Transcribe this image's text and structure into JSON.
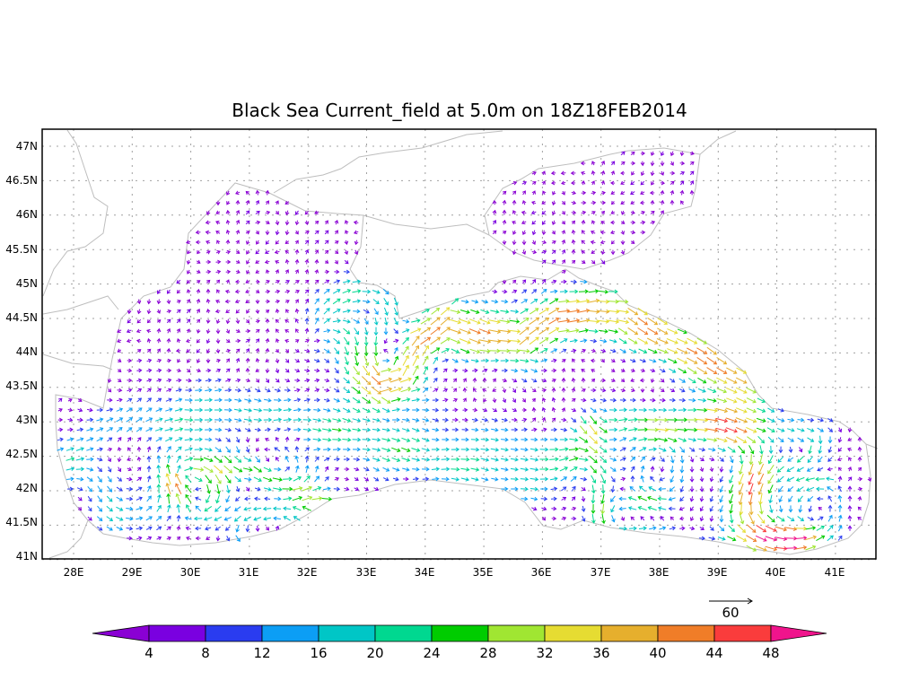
{
  "title": "Black Sea Current_field at 5.0m on 18Z18FEB2014",
  "axes": {
    "lon_labels": [
      "28E",
      "29E",
      "30E",
      "31E",
      "32E",
      "33E",
      "34E",
      "35E",
      "36E",
      "37E",
      "38E",
      "39E",
      "40E",
      "41E"
    ],
    "lat_labels": [
      "47N",
      "46.5N",
      "46N",
      "45.5N",
      "45N",
      "44.5N",
      "44N",
      "43.5N",
      "43N",
      "42.5N",
      "42N",
      "41.5N",
      "41N"
    ]
  },
  "reference_vector": {
    "label": "60"
  },
  "colorbar": {
    "colors": [
      "#8a00d4",
      "#7a00e0",
      "#2a3cf0",
      "#0c9ef5",
      "#00c6c6",
      "#00d890",
      "#00cc00",
      "#a0e632",
      "#e6dc32",
      "#e6af2d",
      "#f07d28",
      "#fa3c3c",
      "#f0148c"
    ],
    "labels": [
      "4",
      "8",
      "12",
      "16",
      "20",
      "24",
      "28",
      "32",
      "36",
      "40",
      "44",
      "48"
    ]
  },
  "coast_color": "#bebebe",
  "grid_color": "#a0a0a0"
}
